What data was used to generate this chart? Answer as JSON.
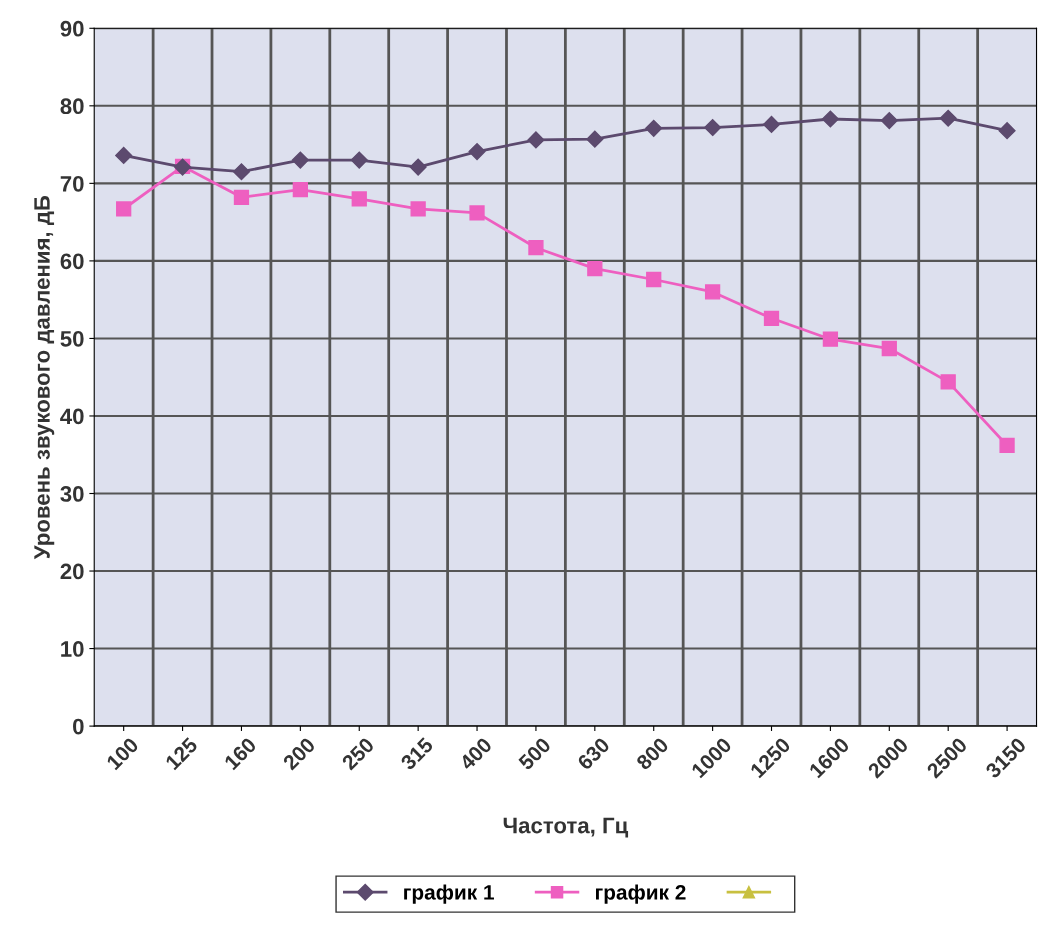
{
  "chart_data": {
    "type": "line",
    "xlabel": "Частота, Гц",
    "ylabel": "Уровень звукового давления, дБ",
    "categories": [
      "100",
      "125",
      "160",
      "200",
      "250",
      "315",
      "400",
      "500",
      "630",
      "800",
      "1000",
      "1250",
      "1600",
      "2000",
      "2500",
      "3150"
    ],
    "ylim": [
      0,
      90
    ],
    "yticks": [
      0,
      10,
      20,
      30,
      40,
      50,
      60,
      70,
      80,
      90
    ],
    "grid": true,
    "legend": "bottom",
    "series": [
      {
        "name": "график 1",
        "color": "#5c4a6e",
        "marker": "diamond",
        "values": [
          73.6,
          72.1,
          71.5,
          73.0,
          73.0,
          72.1,
          74.1,
          75.6,
          75.7,
          77.1,
          77.2,
          77.6,
          78.3,
          78.1,
          78.4,
          76.8
        ]
      },
      {
        "name": "график 2",
        "color": "#ee5fc0",
        "marker": "square",
        "values": [
          66.7,
          72.2,
          68.2,
          69.2,
          68.0,
          66.7,
          66.2,
          61.7,
          59.0,
          57.6,
          56.0,
          52.6,
          49.9,
          48.7,
          44.4,
          36.2
        ]
      },
      {
        "color": "#c8c040",
        "marker": "triangle",
        "values": [
          null,
          null,
          null,
          null,
          null,
          null,
          null,
          null,
          null,
          null,
          null,
          null,
          null,
          null,
          null,
          null
        ]
      }
    ]
  }
}
